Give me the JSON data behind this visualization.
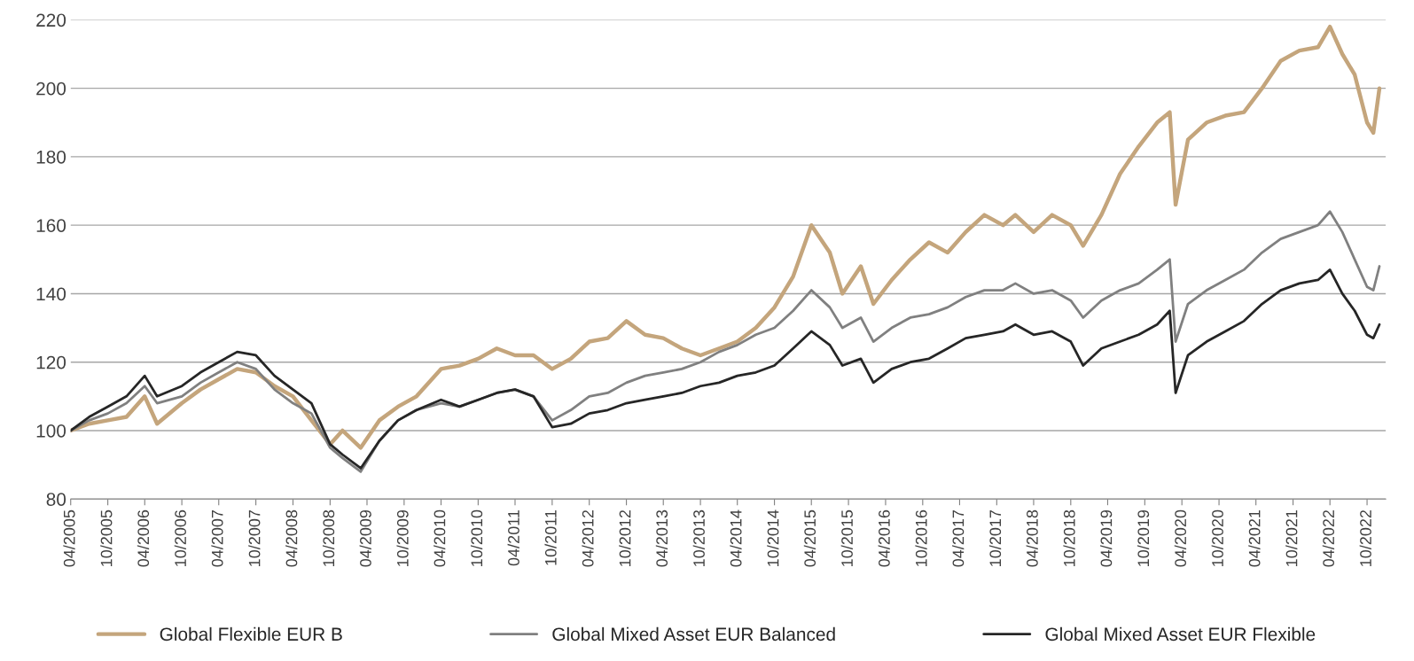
{
  "chart_data": {
    "type": "line",
    "x": [
      "2005-04",
      "2005-07",
      "2005-10",
      "2006-01",
      "2006-04",
      "2006-06",
      "2006-10",
      "2007-01",
      "2007-04",
      "2007-07",
      "2007-10",
      "2008-01",
      "2008-04",
      "2008-07",
      "2008-10",
      "2008-12",
      "2009-03",
      "2009-06",
      "2009-09",
      "2009-12",
      "2010-04",
      "2010-07",
      "2010-10",
      "2011-01",
      "2011-04",
      "2011-07",
      "2011-10",
      "2012-01",
      "2012-04",
      "2012-07",
      "2012-10",
      "2013-01",
      "2013-04",
      "2013-07",
      "2013-10",
      "2014-01",
      "2014-04",
      "2014-07",
      "2014-10",
      "2015-01",
      "2015-04",
      "2015-07",
      "2015-09",
      "2015-12",
      "2016-02",
      "2016-05",
      "2016-08",
      "2016-11",
      "2017-02",
      "2017-05",
      "2017-08",
      "2017-11",
      "2018-01",
      "2018-04",
      "2018-07",
      "2018-10",
      "2018-12",
      "2019-03",
      "2019-06",
      "2019-09",
      "2019-12",
      "2020-02",
      "2020-03",
      "2020-05",
      "2020-08",
      "2020-11",
      "2021-02",
      "2021-05",
      "2021-08",
      "2021-11",
      "2022-02",
      "2022-04",
      "2022-06",
      "2022-08",
      "2022-10",
      "2022-11",
      "2022-12"
    ],
    "series": [
      {
        "name": "Global Flexible EUR B",
        "color": "#c4a57c",
        "values": [
          100,
          102,
          103,
          104,
          110,
          102,
          108,
          112,
          115,
          118,
          117,
          113,
          110,
          103,
          96,
          100,
          95,
          103,
          107,
          110,
          118,
          119,
          121,
          124,
          122,
          122,
          118,
          121,
          126,
          127,
          132,
          128,
          127,
          124,
          122,
          124,
          126,
          130,
          136,
          145,
          160,
          152,
          140,
          148,
          137,
          144,
          150,
          155,
          152,
          158,
          163,
          160,
          163,
          158,
          163,
          160,
          154,
          163,
          175,
          183,
          190,
          193,
          166,
          185,
          190,
          192,
          193,
          200,
          208,
          211,
          212,
          218,
          210,
          204,
          190,
          187,
          200
        ]
      },
      {
        "name": "Global Mixed Asset EUR Balanced",
        "color": "#808080",
        "values": [
          100,
          103,
          105,
          108,
          113,
          108,
          110,
          114,
          117,
          120,
          118,
          112,
          108,
          105,
          95,
          92,
          88,
          97,
          103,
          106,
          108,
          107,
          109,
          111,
          112,
          110,
          103,
          106,
          110,
          111,
          114,
          116,
          117,
          118,
          120,
          123,
          125,
          128,
          130,
          135,
          141,
          136,
          130,
          133,
          126,
          130,
          133,
          134,
          136,
          139,
          141,
          141,
          143,
          140,
          141,
          138,
          133,
          138,
          141,
          143,
          147,
          150,
          126,
          137,
          141,
          144,
          147,
          152,
          156,
          158,
          160,
          164,
          158,
          150,
          142,
          141,
          148
        ]
      },
      {
        "name": "Global Mixed Asset EUR Flexible",
        "color": "#262626",
        "values": [
          100,
          104,
          107,
          110,
          116,
          110,
          113,
          117,
          120,
          123,
          122,
          116,
          112,
          108,
          96,
          93,
          89,
          97,
          103,
          106,
          109,
          107,
          109,
          111,
          112,
          110,
          101,
          102,
          105,
          106,
          108,
          109,
          110,
          111,
          113,
          114,
          116,
          117,
          119,
          124,
          129,
          125,
          119,
          121,
          114,
          118,
          120,
          121,
          124,
          127,
          128,
          129,
          131,
          128,
          129,
          126,
          119,
          124,
          126,
          128,
          131,
          135,
          111,
          122,
          126,
          129,
          132,
          137,
          141,
          143,
          144,
          147,
          140,
          135,
          128,
          127,
          131
        ]
      }
    ],
    "xlim": [
      "2005-04",
      "2023-01"
    ],
    "xticks": [
      {
        "value": "2005-04",
        "label": "04/2005"
      },
      {
        "value": "2005-10",
        "label": "10/2005"
      },
      {
        "value": "2006-04",
        "label": "04/2006"
      },
      {
        "value": "2006-10",
        "label": "10/2006"
      },
      {
        "value": "2007-04",
        "label": "04/2007"
      },
      {
        "value": "2007-10",
        "label": "10/2007"
      },
      {
        "value": "2008-04",
        "label": "04/2008"
      },
      {
        "value": "2008-10",
        "label": "10/2008"
      },
      {
        "value": "2009-04",
        "label": "04/2009"
      },
      {
        "value": "2009-10",
        "label": "10/2009"
      },
      {
        "value": "2010-04",
        "label": "04/2010"
      },
      {
        "value": "2010-10",
        "label": "10/2010"
      },
      {
        "value": "2011-04",
        "label": "04/2011"
      },
      {
        "value": "2011-10",
        "label": "10/2011"
      },
      {
        "value": "2012-04",
        "label": "04/2012"
      },
      {
        "value": "2012-10",
        "label": "10/2012"
      },
      {
        "value": "2013-04",
        "label": "04/2013"
      },
      {
        "value": "2013-10",
        "label": "10/2013"
      },
      {
        "value": "2014-04",
        "label": "04/2014"
      },
      {
        "value": "2014-10",
        "label": "10/2014"
      },
      {
        "value": "2015-04",
        "label": "04/2015"
      },
      {
        "value": "2015-10",
        "label": "10/2015"
      },
      {
        "value": "2016-04",
        "label": "04/2016"
      },
      {
        "value": "2016-10",
        "label": "10/2016"
      },
      {
        "value": "2017-04",
        "label": "04/2017"
      },
      {
        "value": "2017-10",
        "label": "10/2017"
      },
      {
        "value": "2018-04",
        "label": "04/2018"
      },
      {
        "value": "2018-10",
        "label": "10/2018"
      },
      {
        "value": "2019-04",
        "label": "04/2019"
      },
      {
        "value": "2019-10",
        "label": "10/2019"
      },
      {
        "value": "2020-04",
        "label": "04/2020"
      },
      {
        "value": "2020-10",
        "label": "10/2020"
      },
      {
        "value": "2021-04",
        "label": "04/2021"
      },
      {
        "value": "2021-10",
        "label": "10/2021"
      },
      {
        "value": "2022-04",
        "label": "04/2022"
      },
      {
        "value": "2022-10",
        "label": "10/2022"
      }
    ],
    "ylim": [
      80,
      220
    ],
    "yticks": [
      80,
      100,
      120,
      140,
      160,
      180,
      200,
      220
    ],
    "grid": "y",
    "legend": "bottom",
    "marker": "none",
    "line_style": "solid"
  }
}
